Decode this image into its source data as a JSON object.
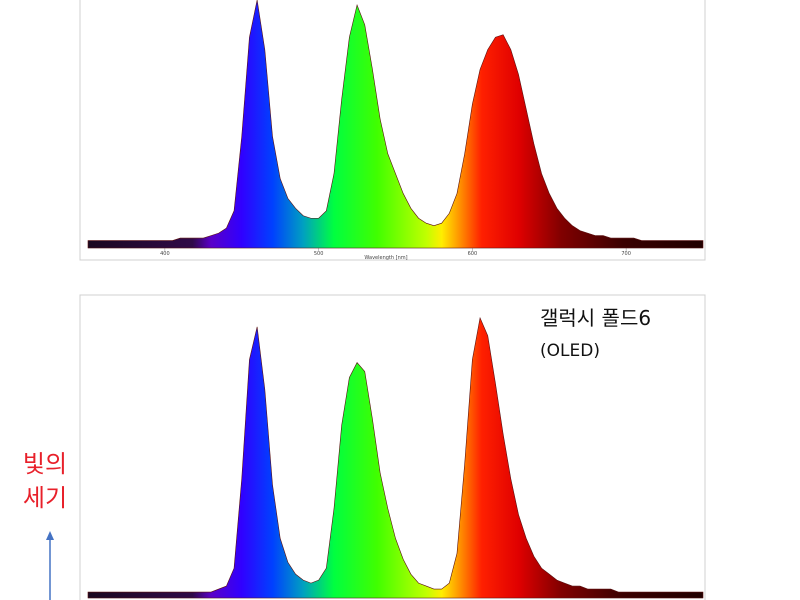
{
  "chart_data": [
    {
      "type": "area",
      "xlabel": "Wavelength [nm]",
      "xlim": [
        350,
        750
      ],
      "ylim": [
        0,
        1
      ],
      "xticks": [
        400,
        500,
        600,
        700
      ],
      "x": [
        350,
        355,
        360,
        365,
        370,
        375,
        380,
        385,
        390,
        395,
        400,
        405,
        410,
        415,
        420,
        425,
        430,
        435,
        440,
        445,
        450,
        455,
        460,
        465,
        470,
        475,
        480,
        485,
        490,
        495,
        500,
        505,
        510,
        515,
        520,
        525,
        530,
        535,
        540,
        545,
        550,
        555,
        560,
        565,
        570,
        575,
        580,
        585,
        590,
        595,
        600,
        605,
        610,
        615,
        620,
        625,
        630,
        635,
        640,
        645,
        650,
        655,
        660,
        665,
        670,
        675,
        680,
        685,
        690,
        695,
        700,
        705,
        710,
        715,
        720,
        725,
        730,
        735,
        740,
        745,
        750
      ],
      "values": [
        0.03,
        0.03,
        0.03,
        0.03,
        0.03,
        0.03,
        0.03,
        0.03,
        0.03,
        0.03,
        0.03,
        0.03,
        0.04,
        0.04,
        0.04,
        0.04,
        0.05,
        0.06,
        0.08,
        0.15,
        0.45,
        0.85,
        1.0,
        0.8,
        0.45,
        0.28,
        0.2,
        0.16,
        0.13,
        0.12,
        0.12,
        0.15,
        0.3,
        0.6,
        0.85,
        0.98,
        0.9,
        0.72,
        0.52,
        0.38,
        0.3,
        0.22,
        0.16,
        0.12,
        0.1,
        0.09,
        0.1,
        0.14,
        0.22,
        0.38,
        0.58,
        0.72,
        0.8,
        0.85,
        0.86,
        0.8,
        0.7,
        0.56,
        0.42,
        0.3,
        0.22,
        0.16,
        0.12,
        0.09,
        0.07,
        0.06,
        0.05,
        0.05,
        0.04,
        0.04,
        0.04,
        0.04,
        0.03,
        0.03,
        0.03,
        0.03,
        0.03,
        0.03,
        0.03,
        0.03,
        0.03
      ]
    },
    {
      "type": "area",
      "annotations": [
        "갤럭시 폴드6",
        "(OLED)"
      ],
      "ylabel": [
        "빛의",
        "세기"
      ],
      "xlim": [
        350,
        750
      ],
      "ylim": [
        0,
        1
      ],
      "x": [
        350,
        355,
        360,
        365,
        370,
        375,
        380,
        385,
        390,
        395,
        400,
        405,
        410,
        415,
        420,
        425,
        430,
        435,
        440,
        445,
        450,
        455,
        460,
        465,
        470,
        475,
        480,
        485,
        490,
        495,
        500,
        505,
        510,
        515,
        520,
        525,
        530,
        535,
        540,
        545,
        550,
        555,
        560,
        565,
        570,
        575,
        580,
        585,
        590,
        595,
        600,
        605,
        610,
        615,
        620,
        625,
        630,
        635,
        640,
        645,
        650,
        655,
        660,
        665,
        670,
        675,
        680,
        685,
        690,
        695,
        700,
        705,
        710,
        715,
        720,
        725,
        730,
        735,
        740,
        745,
        750
      ],
      "values": [
        0.02,
        0.02,
        0.02,
        0.02,
        0.02,
        0.02,
        0.02,
        0.02,
        0.02,
        0.02,
        0.02,
        0.02,
        0.02,
        0.02,
        0.02,
        0.02,
        0.02,
        0.03,
        0.04,
        0.1,
        0.4,
        0.8,
        0.91,
        0.7,
        0.38,
        0.2,
        0.12,
        0.08,
        0.06,
        0.05,
        0.06,
        0.1,
        0.3,
        0.58,
        0.74,
        0.79,
        0.76,
        0.6,
        0.42,
        0.3,
        0.2,
        0.13,
        0.08,
        0.05,
        0.04,
        0.03,
        0.03,
        0.05,
        0.15,
        0.45,
        0.8,
        0.94,
        0.88,
        0.72,
        0.55,
        0.4,
        0.28,
        0.2,
        0.14,
        0.1,
        0.08,
        0.06,
        0.05,
        0.04,
        0.04,
        0.03,
        0.03,
        0.03,
        0.03,
        0.02,
        0.02,
        0.02,
        0.02,
        0.02,
        0.02,
        0.02,
        0.02,
        0.02,
        0.02,
        0.02,
        0.02
      ]
    }
  ]
}
